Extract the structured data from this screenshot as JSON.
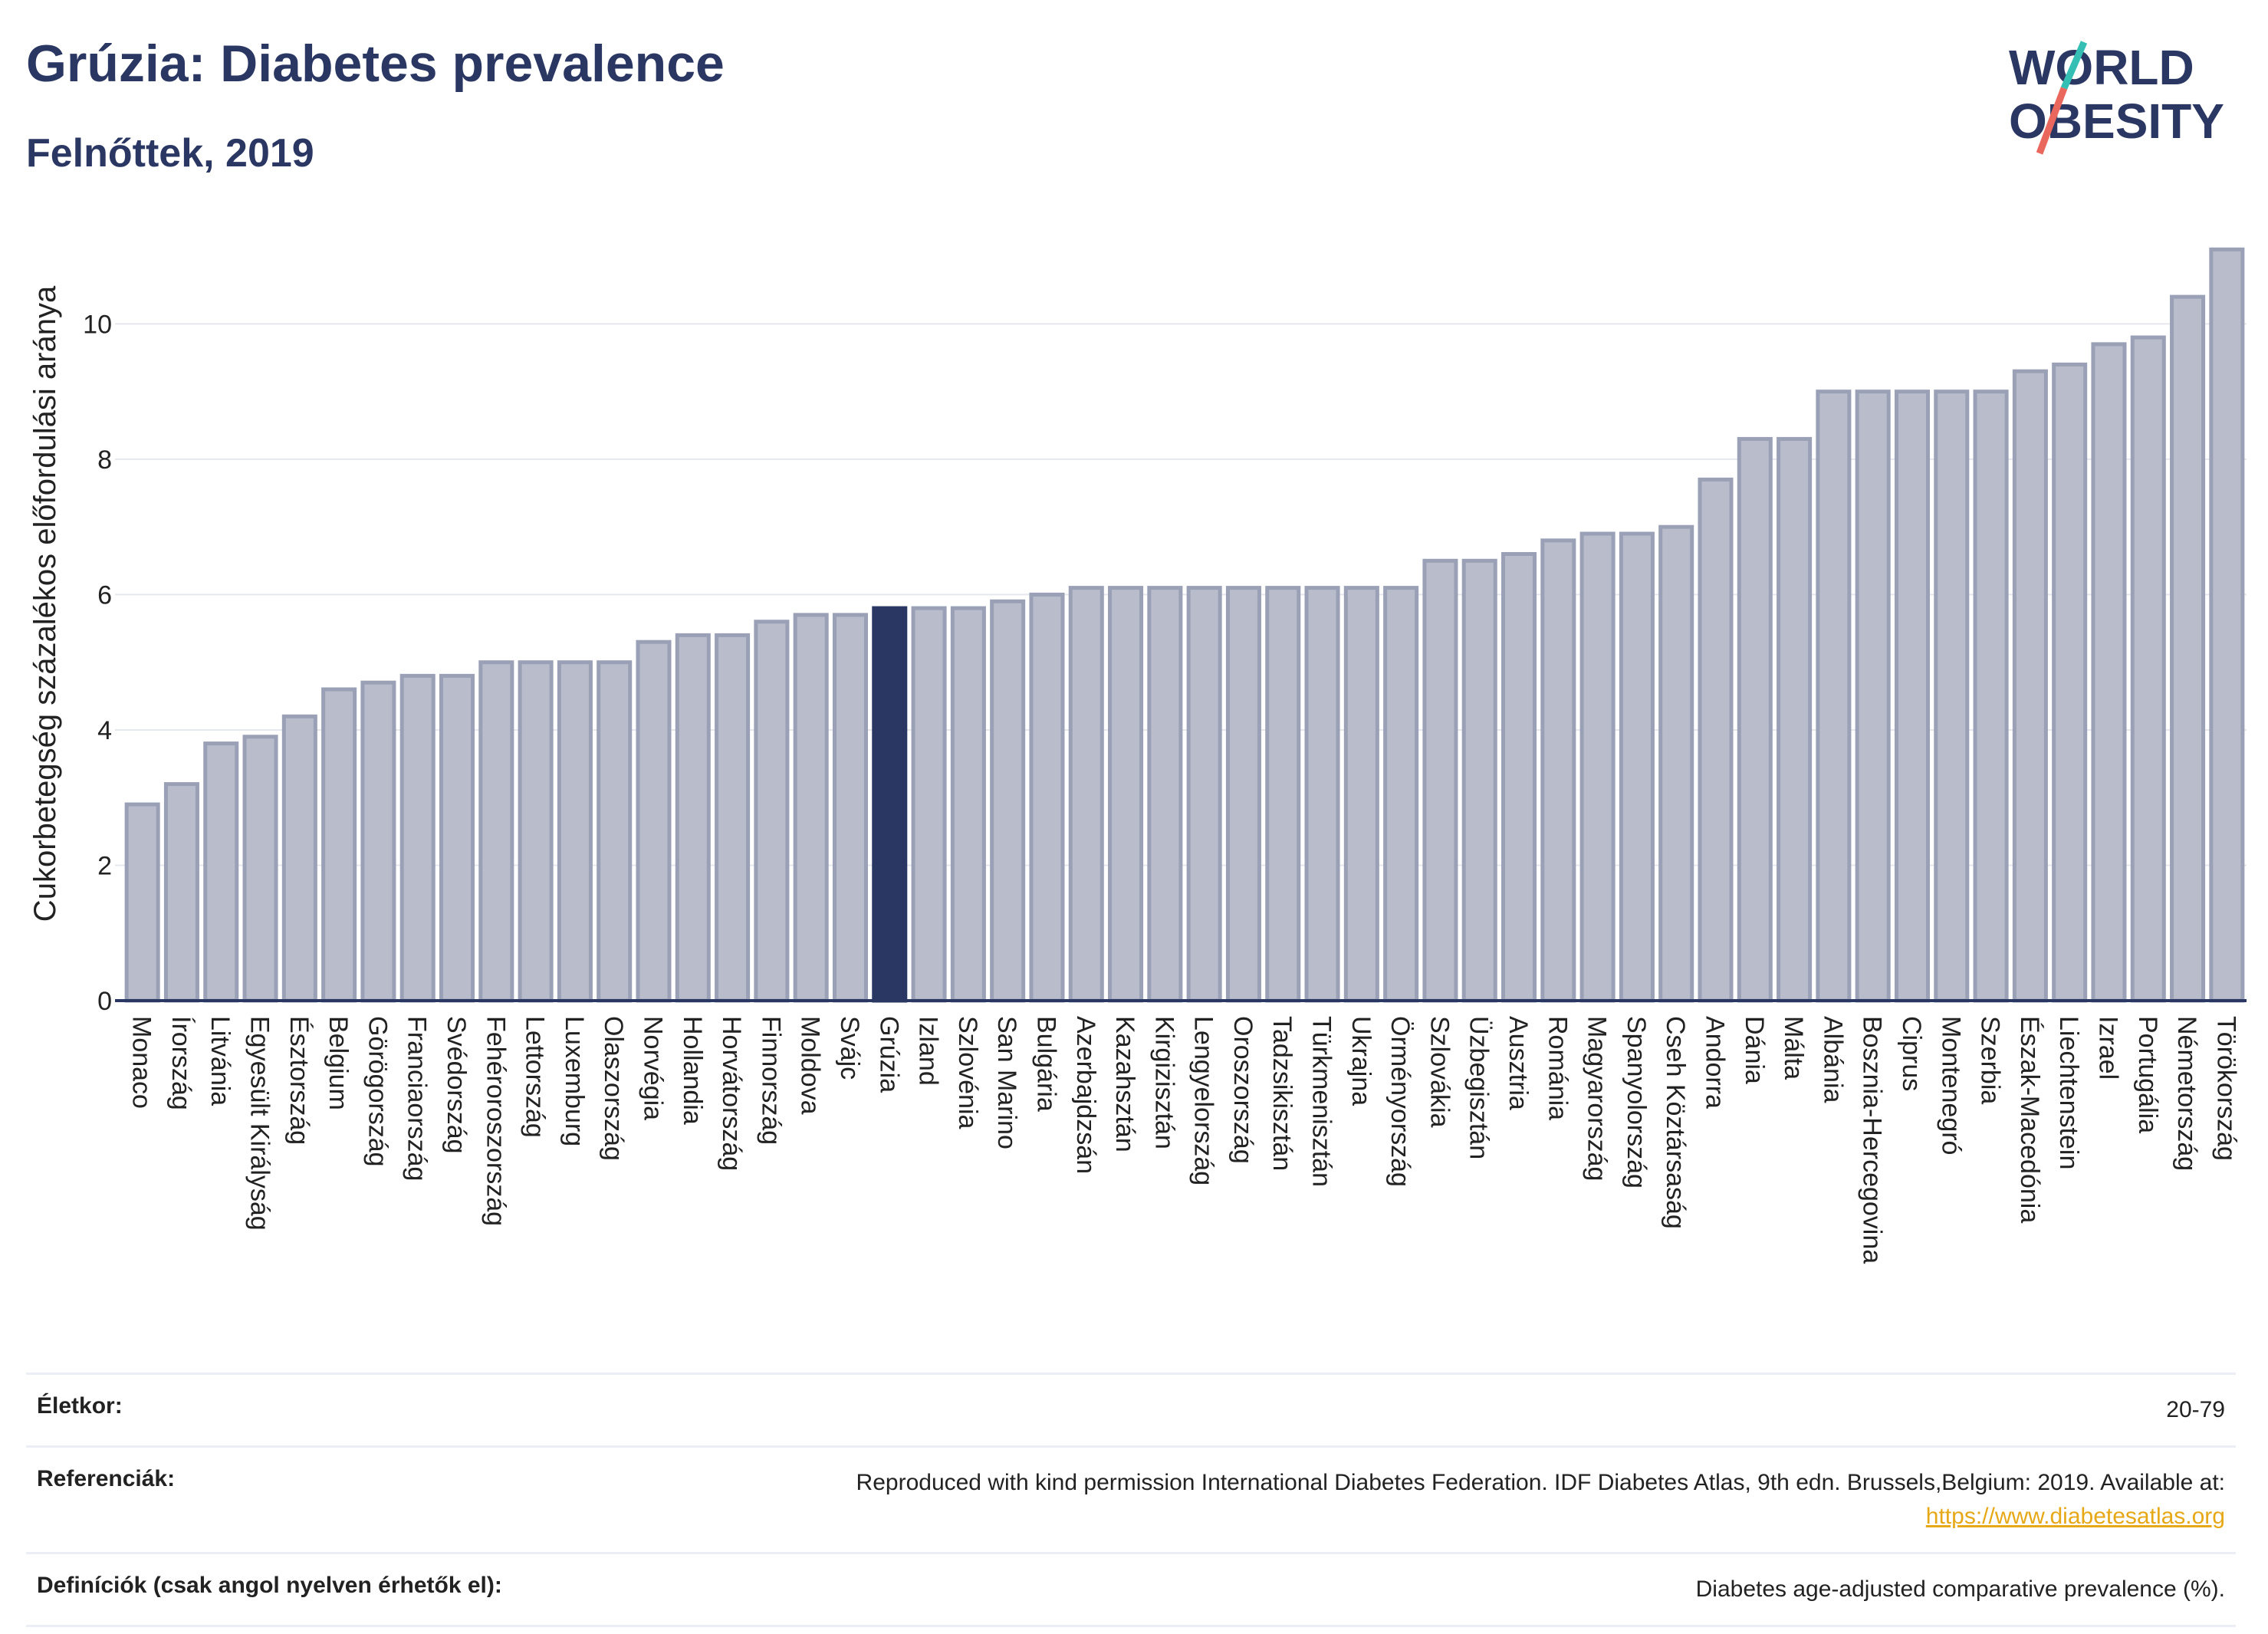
{
  "header": {
    "title": "Grúzia: Diabetes prevalence",
    "subtitle": "Felnőttek, 2019"
  },
  "logo": {
    "line1": "WORLD",
    "line2": "OBESITY"
  },
  "colors": {
    "bar": "#b8bccb",
    "bar_border": "#9aa0b5",
    "highlight": "#2b3763",
    "title": "#2b3763",
    "link": "#e6a817"
  },
  "chart_data": {
    "type": "bar",
    "ylabel": "Cukorbetegség százalékos előfordulási aránya",
    "xlabel": "",
    "ylim": [
      0,
      11.5
    ],
    "yticks": [
      0,
      2,
      4,
      6,
      8,
      10
    ],
    "grid": true,
    "highlight": "Grúzia",
    "categories": [
      "Monaco",
      "Írország",
      "Litvánia",
      "Egyesült Királyság",
      "Észtország",
      "Belgium",
      "Görögország",
      "Franciaország",
      "Svédország",
      "Fehéroroszország",
      "Lettország",
      "Luxemburg",
      "Olaszország",
      "Norvégia",
      "Hollandia",
      "Horvátország",
      "Finnország",
      "Moldova",
      "Svájc",
      "Grúzia",
      "Izland",
      "Szlovénia",
      "San Marino",
      "Bulgária",
      "Azerbajdzsán",
      "Kazahsztán",
      "Kirgizisztán",
      "Lengyelország",
      "Oroszország",
      "Tadzsikisztán",
      "Türkmenisztán",
      "Ukrajna",
      "Örményország",
      "Szlovákia",
      "Üzbegisztán",
      "Ausztria",
      "Románia",
      "Magyarország",
      "Spanyolország",
      "Cseh Köztársaság",
      "Andorra",
      "Dánia",
      "Málta",
      "Albánia",
      "Bosznia-Hercegovina",
      "Ciprus",
      "Montenegró",
      "Szerbia",
      "Észak-Macedónia",
      "Liechtenstein",
      "Izrael",
      "Portugália",
      "Németország",
      "Törökország"
    ],
    "values": [
      2.9,
      3.2,
      3.8,
      3.9,
      4.2,
      4.6,
      4.7,
      4.8,
      4.8,
      5.0,
      5.0,
      5.0,
      5.0,
      5.3,
      5.4,
      5.4,
      5.6,
      5.7,
      5.7,
      5.8,
      5.8,
      5.8,
      5.9,
      6.0,
      6.1,
      6.1,
      6.1,
      6.1,
      6.1,
      6.1,
      6.1,
      6.1,
      6.1,
      6.5,
      6.5,
      6.6,
      6.8,
      6.9,
      6.9,
      7.0,
      7.7,
      8.3,
      8.3,
      9.0,
      9.0,
      9.0,
      9.0,
      9.0,
      9.3,
      9.4,
      9.7,
      9.8,
      10.4,
      11.1
    ]
  },
  "info": {
    "age_label": "Életkor:",
    "age_value": "20-79",
    "ref_label": "Referenciák:",
    "ref_value": "Reproduced with kind permission International Diabetes Federation. IDF Diabetes Atlas, 9th edn. Brussels,Belgium: 2019. Available at:",
    "ref_link": "https://www.diabetesatlas.org",
    "def_label": "Definíciók (csak angol nyelven érhetők el):",
    "def_value": "Diabetes age-adjusted comparative prevalence (%)."
  }
}
